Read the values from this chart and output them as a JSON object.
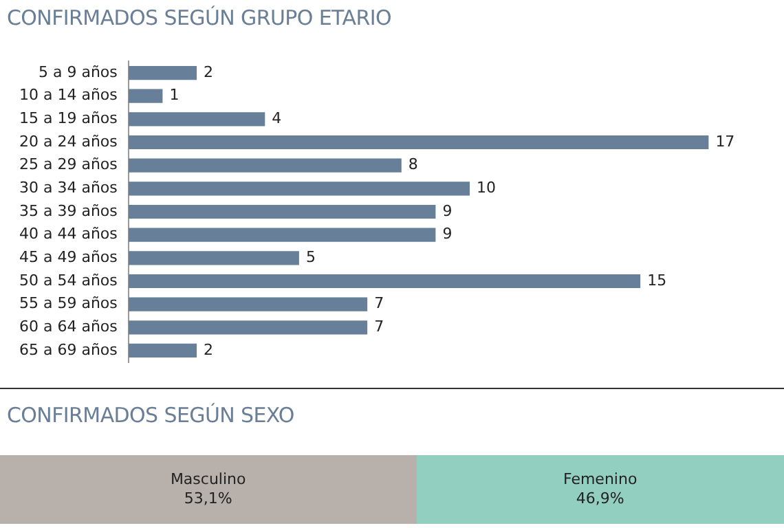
{
  "chart_data": [
    {
      "type": "bar",
      "orientation": "horizontal",
      "title": "CONFIRMADOS SEGÚN GRUPO ETARIO",
      "color": "#687f99",
      "data_labels": true,
      "categories": [
        "5 a 9 años",
        "10 a 14 años",
        "15 a 19 años",
        "20 a 24 años",
        "25 a 29 años",
        "30 a 34 años",
        "35 a 39 años",
        "40 a 44 años",
        "45 a 49 años",
        "50 a 54 años",
        "55 a 59 años",
        "60 a 64 años",
        "65 a 69 años"
      ],
      "values": [
        2,
        1,
        4,
        17,
        8,
        10,
        9,
        9,
        5,
        15,
        7,
        7,
        2
      ]
    },
    {
      "type": "bar",
      "orientation": "horizontal",
      "stacked": true,
      "title": "CONFIRMADOS SEGÚN SEXO",
      "categories": [
        null
      ],
      "series": [
        {
          "name": "Masculino",
          "color": "#b8b0ab",
          "values": [
            53.1
          ],
          "value_labels": [
            "53,1%"
          ]
        },
        {
          "name": "Femenino",
          "color": "#93cfc0",
          "values": [
            46.9
          ],
          "value_labels": [
            "46,9%"
          ]
        }
      ]
    }
  ]
}
